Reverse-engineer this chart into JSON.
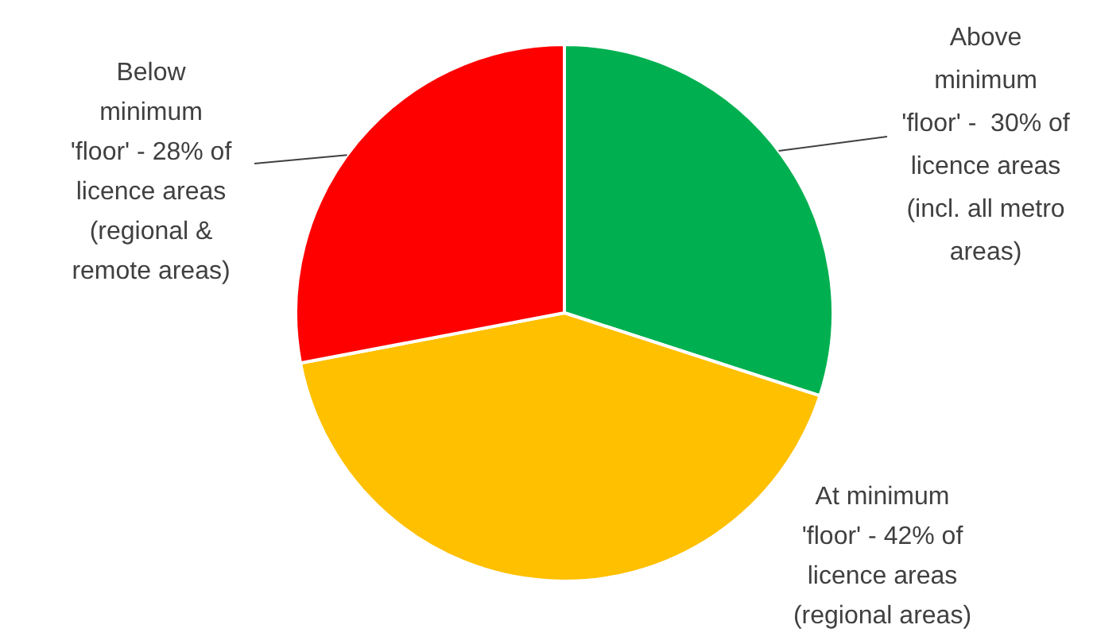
{
  "chart_data": {
    "type": "pie",
    "categories": [
      "Above minimum 'floor' -  30% of licence areas (incl. all metro areas)",
      "At minimum 'floor' - 42% of licence areas (regional areas)",
      "Below minimum 'floor' - 28% of licence areas (regional & remote areas)"
    ],
    "values": [
      30,
      42,
      28
    ],
    "colors": [
      "#00b050",
      "#ffc000",
      "#ff0000"
    ],
    "legend": false
  }
}
